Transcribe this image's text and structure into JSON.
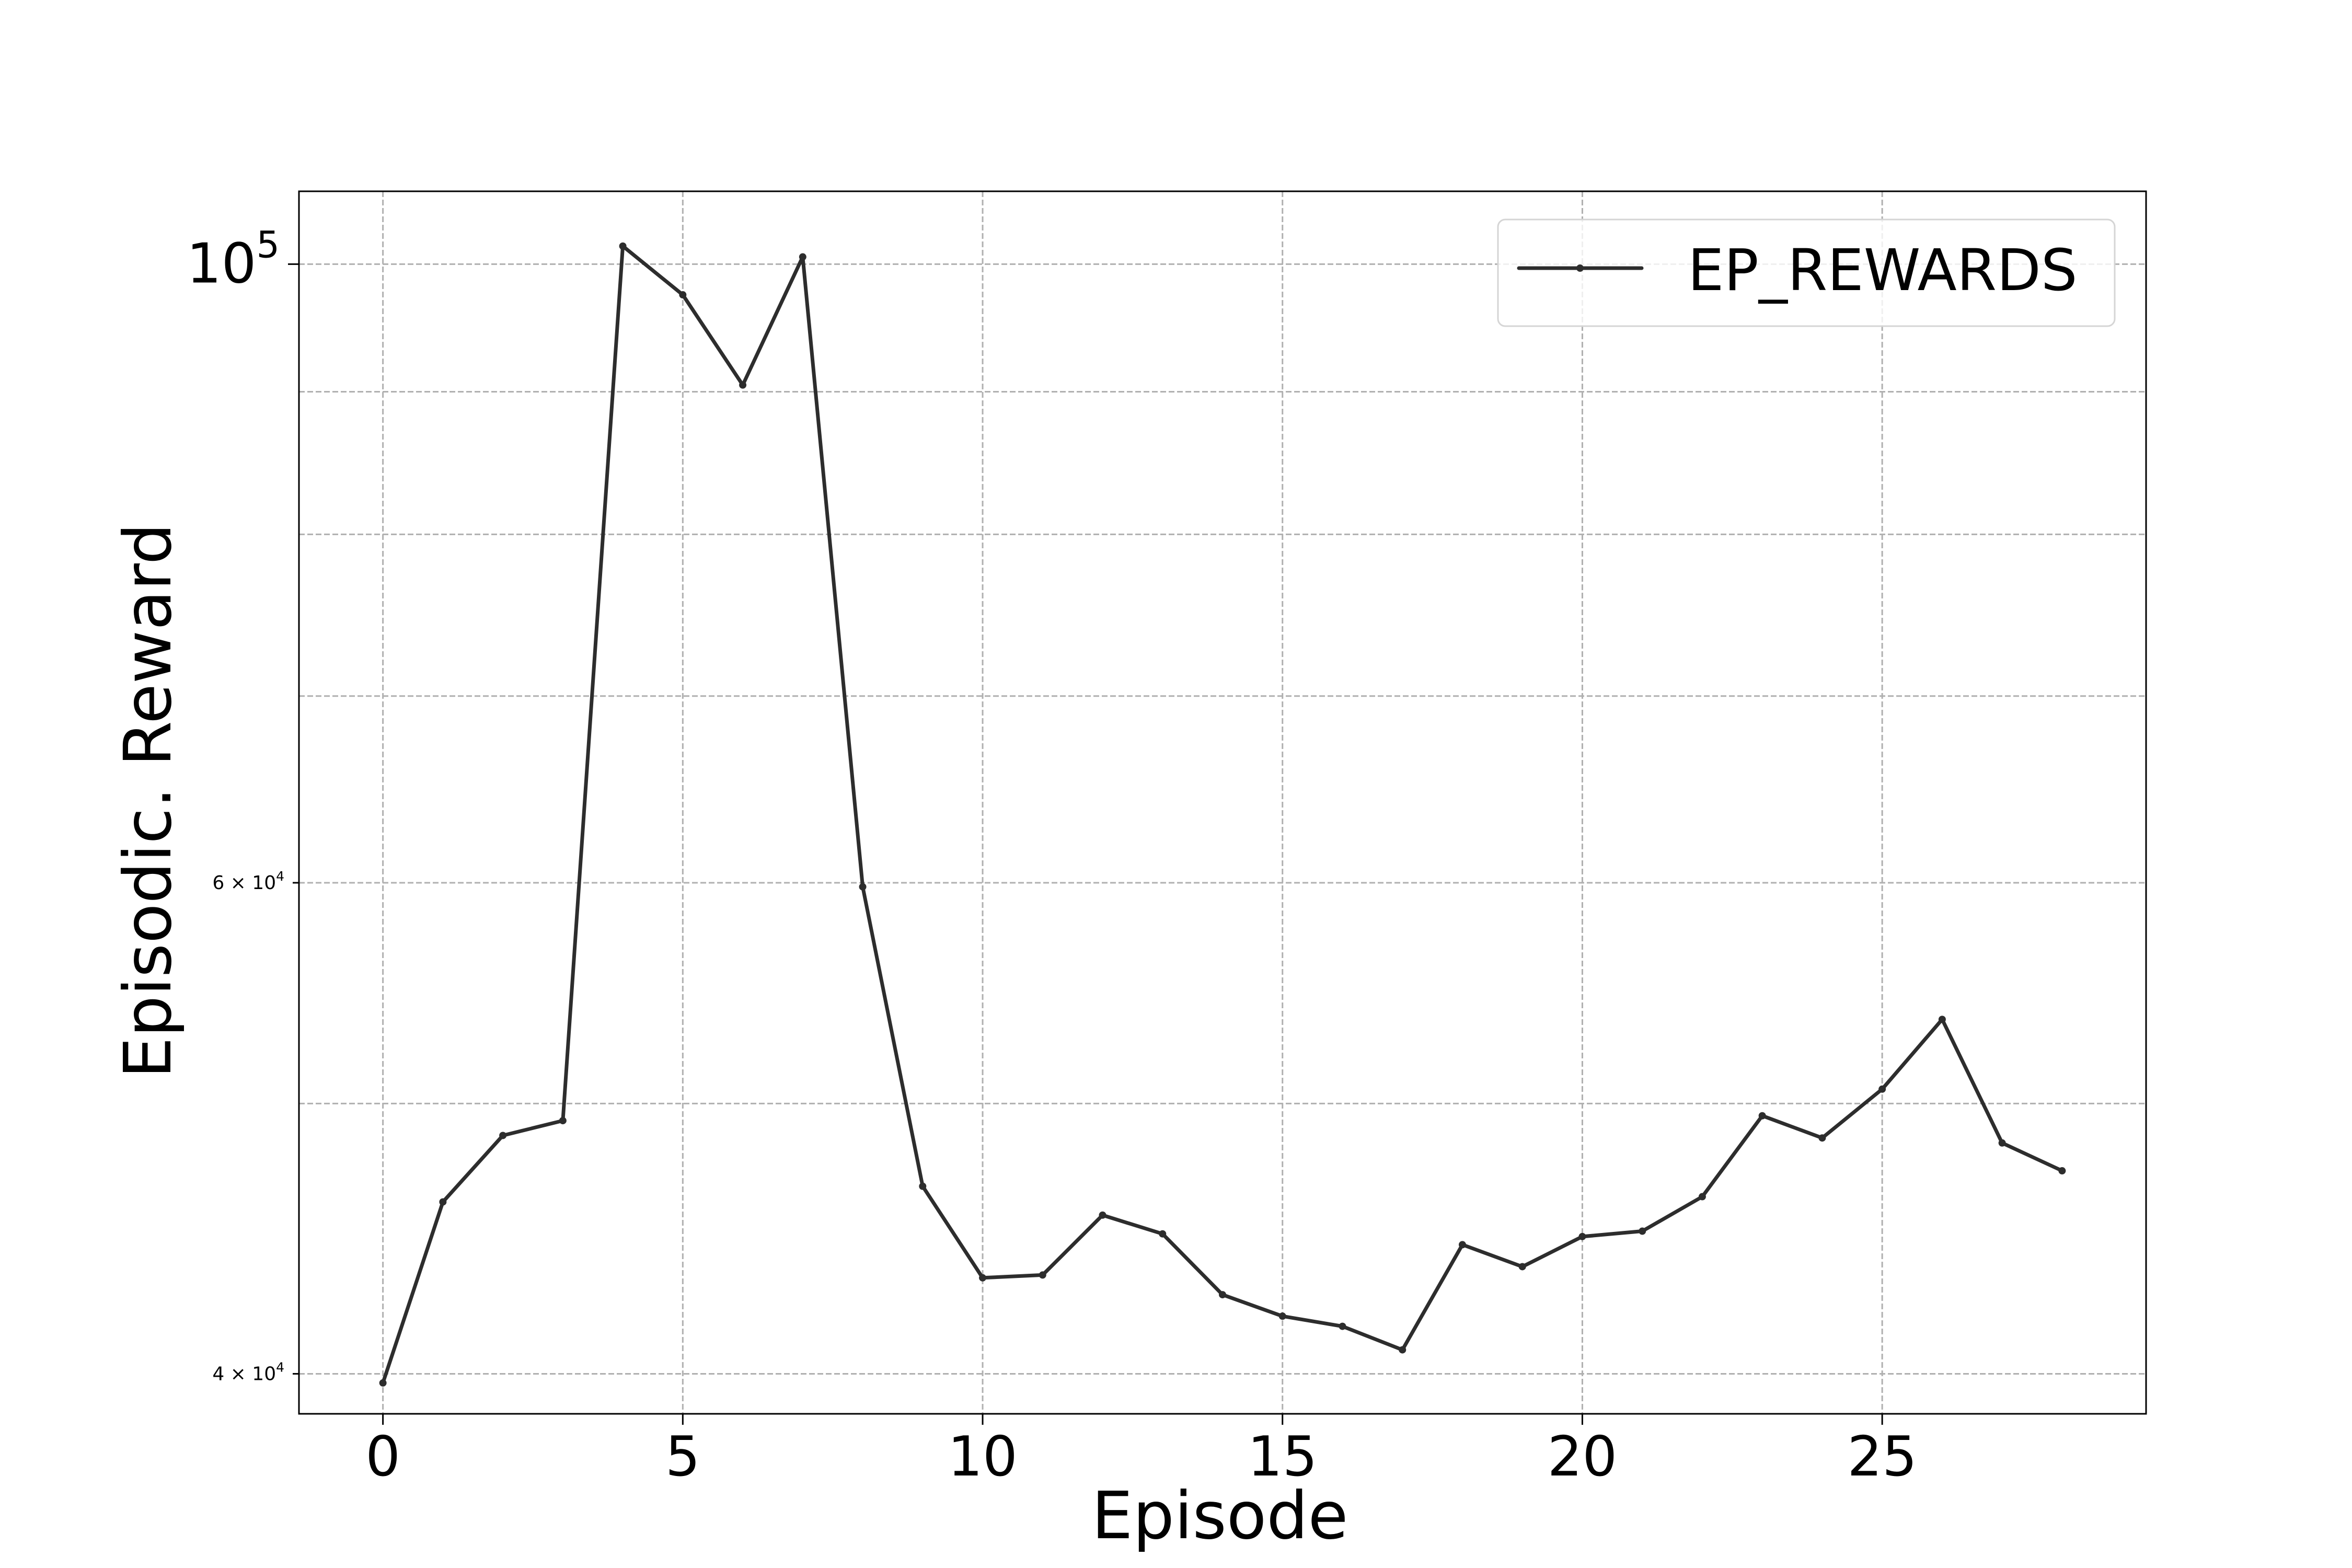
{
  "chart_data": {
    "type": "line",
    "title": "",
    "xlabel": "Episode",
    "ylabel": "Episodic. Reward",
    "y_scale": "log",
    "xlim": [
      -1.4,
      29.4
    ],
    "ylim": [
      38700,
      106200
    ],
    "grid": true,
    "legend_position": "top-right",
    "x_ticks": [
      0,
      5,
      10,
      15,
      20,
      25
    ],
    "x_tick_labels": [
      "0",
      "5",
      "10",
      "15",
      "20",
      "25"
    ],
    "y_major_ticks": [
      {
        "value": 100000,
        "base": "10",
        "exponent": "5"
      }
    ],
    "y_minor_ticks": [
      {
        "value": 40000,
        "mantissa": "4",
        "base": "10",
        "exponent": "4"
      },
      {
        "value": 60000,
        "mantissa": "6",
        "base": "10",
        "exponent": "4"
      }
    ],
    "y_minor_grid": [
      40000,
      50000,
      60000,
      70000,
      80000,
      90000,
      100000
    ],
    "series": [
      {
        "name": "EP_REWARDS",
        "color": "#2d2d2d",
        "x": [
          0,
          1,
          2,
          3,
          4,
          5,
          6,
          7,
          8,
          9,
          10,
          11,
          12,
          13,
          14,
          15,
          16,
          17,
          18,
          19,
          20,
          21,
          22,
          23,
          24,
          25,
          26,
          27,
          28
        ],
        "y": [
          39700,
          46100,
          48700,
          49300,
          101500,
          97500,
          90500,
          100600,
          59800,
          46700,
          43300,
          43400,
          45600,
          44900,
          42700,
          41950,
          41600,
          40800,
          44500,
          43700,
          44800,
          45000,
          46300,
          49500,
          48600,
          50600,
          53600,
          48400,
          47300
        ]
      }
    ]
  }
}
